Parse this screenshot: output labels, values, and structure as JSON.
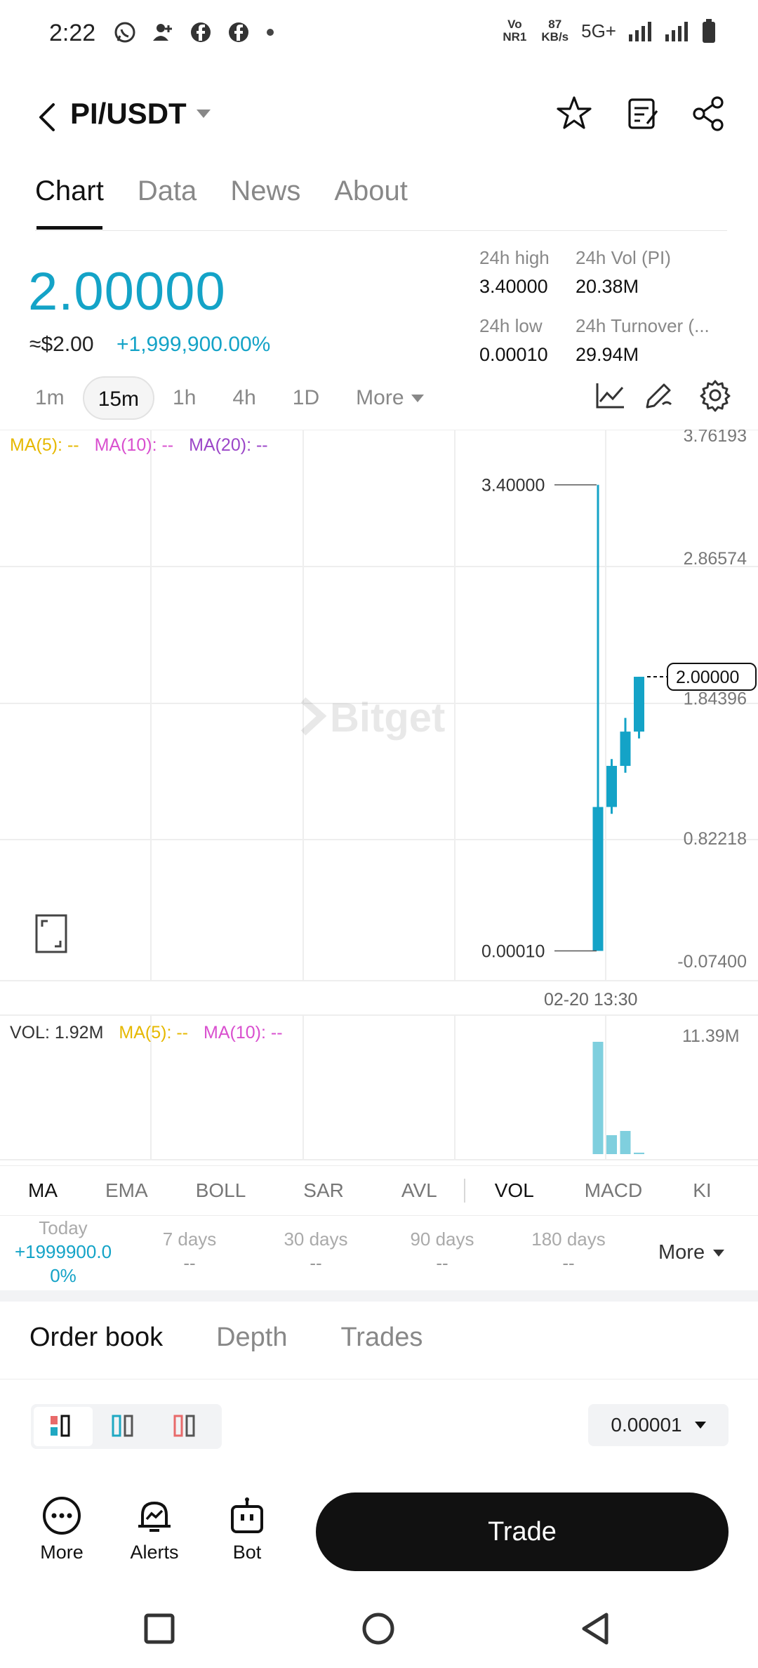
{
  "status_bar": {
    "time": "2:22",
    "volte": "Vo NR1",
    "speed_value": "87",
    "speed_unit": "KB/s",
    "network": "5G+"
  },
  "header": {
    "pair": "PI/USDT"
  },
  "tabs": [
    "Chart",
    "Data",
    "News",
    "About"
  ],
  "ticker": {
    "last_price": "2.00000",
    "usd_price": "≈$2.00",
    "change": "+1,999,900.00%",
    "high_label": "24h high",
    "high_value": "3.40000",
    "vol_label": "24h Vol (PI)",
    "vol_value": "20.38M",
    "low_label": "24h low",
    "low_value": "0.00010",
    "turnover_label": "24h Turnover (...",
    "turnover_value": "29.94M"
  },
  "intervals": {
    "items": [
      "1m",
      "15m",
      "1h",
      "4h",
      "1D"
    ],
    "active": "15m",
    "more": "More"
  },
  "chart_legend": {
    "ma5": "MA(5): --",
    "ma10": "MA(10): --",
    "ma20": "MA(20): --"
  },
  "vol_legend": {
    "vol": "VOL: 1.92M",
    "ma5": "MA(5): --",
    "ma10": "MA(10): --"
  },
  "chart_data": {
    "type": "candlestick",
    "y_ticks": [
      "3.76193",
      "2.86574",
      "1.84396",
      "0.82218",
      "-0.07400"
    ],
    "ylim": [
      -0.074,
      3.76193
    ],
    "x_label": "02-20 13:30",
    "current_price_tag": "2.00000",
    "high_marker": "3.40000",
    "low_marker": "0.00010",
    "watermark": "Bitget",
    "candles": [
      {
        "open": 0.0001,
        "high": 3.4,
        "low": 0.0001,
        "close": 1.05
      },
      {
        "open": 1.05,
        "high": 1.4,
        "low": 1.0,
        "close": 1.35
      },
      {
        "open": 1.35,
        "high": 1.7,
        "low": 1.3,
        "close": 1.6
      },
      {
        "open": 1.6,
        "high": 2.0,
        "low": 1.55,
        "close": 2.0
      }
    ],
    "volume_max_label": "11.39M",
    "volumes": [
      11.39,
      1.92,
      2.35,
      0.15
    ],
    "volume_color": "#7fcfde",
    "candle_color": "#14a3c7"
  },
  "indicators": {
    "items": [
      "MA",
      "EMA",
      "BOLL",
      "SAR",
      "AVL",
      "VOL",
      "MACD",
      "KI"
    ],
    "active": [
      "MA",
      "VOL"
    ]
  },
  "performance": {
    "today_label": "Today",
    "today_value": "+1999900.00%",
    "periods": [
      {
        "label": "7 days",
        "value": "--"
      },
      {
        "label": "30 days",
        "value": "--"
      },
      {
        "label": "90 days",
        "value": "--"
      },
      {
        "label": "180 days",
        "value": "--"
      }
    ],
    "more": "More"
  },
  "orderbook": {
    "tabs": [
      "Order book",
      "Depth",
      "Trades"
    ],
    "precision": "0.00001"
  },
  "bottom_nav": {
    "more": "More",
    "alerts": "Alerts",
    "bot": "Bot",
    "trade": "Trade"
  }
}
